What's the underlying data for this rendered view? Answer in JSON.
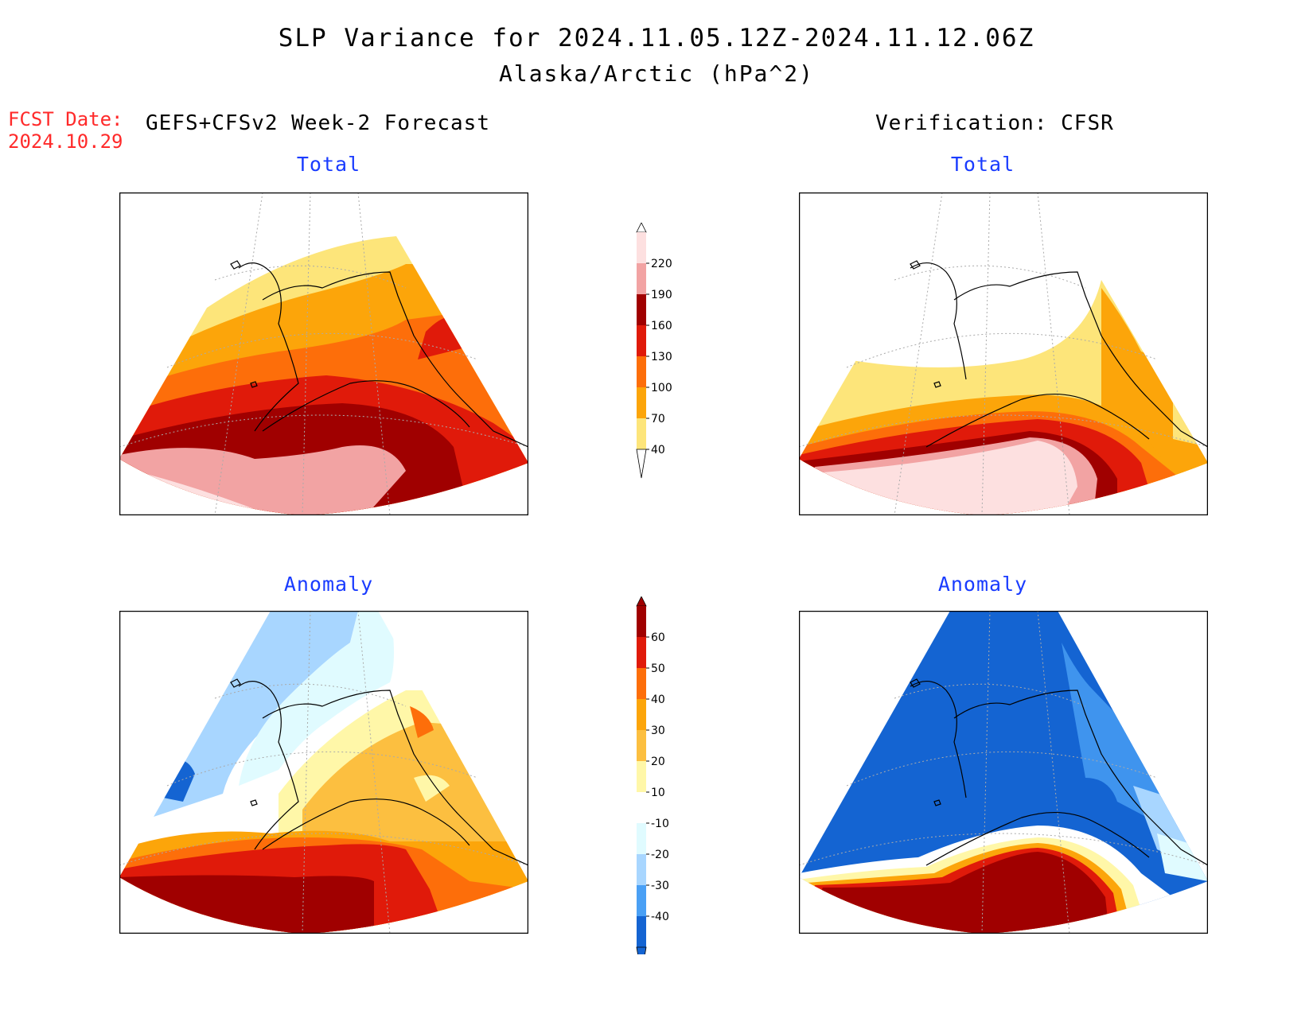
{
  "header": {
    "title": "SLP Variance for 2024.11.05.12Z-2024.11.12.06Z",
    "subtitle": "Alaska/Arctic (hPa^2)",
    "fcst_date_label": "FCST Date:",
    "fcst_date_value": "2024.10.29",
    "left_heading": "GEFS+CFSv2 Week-2 Forecast",
    "right_heading": "Verification: CFSR"
  },
  "panels": {
    "fcst_total_title": "Total",
    "verif_total_title": "Total",
    "fcst_anom_title": "Anomaly",
    "verif_anom_title": "Anomaly"
  },
  "colorbars": {
    "total": {
      "ticks": [
        "220",
        "190",
        "160",
        "130",
        "100",
        "70",
        "40"
      ],
      "colors": [
        "#fde0e0",
        "#f2a3a3",
        "#a00000",
        "#e01a0a",
        "#fd6e0a",
        "#fca50a",
        "#fde57a"
      ]
    },
    "anomaly": {
      "ticks": [
        "60",
        "50",
        "40",
        "30",
        "20",
        "10",
        "-10",
        "-20",
        "-30",
        "-40"
      ],
      "colors": [
        "#a00000",
        "#e01a0a",
        "#fd6e0a",
        "#fca50a",
        "#fcbf40",
        "#fff7a8",
        "#ffffff",
        "#e0fbff",
        "#a8d6ff",
        "#4aa0f5",
        "#1464d2"
      ]
    }
  },
  "map_colors": {
    "coast": "#000000",
    "grid": "#aaaaaa",
    "frame": "#000000"
  }
}
